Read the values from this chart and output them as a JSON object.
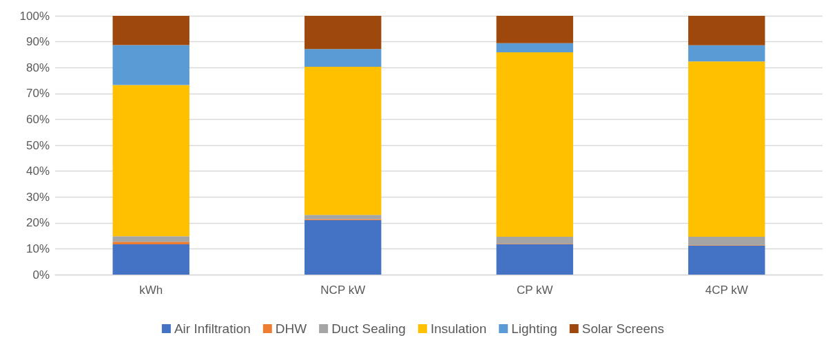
{
  "chart_data": {
    "type": "bar",
    "stacked": true,
    "categories": [
      "kWh",
      "NCP kW",
      "CP kW",
      "4CP kW"
    ],
    "series": [
      {
        "name": "Air Infiltration",
        "color": "#4472c4",
        "values": [
          11.7,
          21.0,
          11.7,
          11.2
        ]
      },
      {
        "name": "DHW",
        "color": "#ed7d31",
        "values": [
          1.0,
          0.4,
          0.2,
          0.2
        ]
      },
      {
        "name": "Duct Sealing",
        "color": "#a5a5a5",
        "values": [
          2.1,
          1.7,
          2.7,
          3.2
        ]
      },
      {
        "name": "Insulation",
        "color": "#ffc000",
        "values": [
          58.5,
          57.2,
          71.3,
          67.8
        ]
      },
      {
        "name": "Lighting",
        "color": "#5b9bd5",
        "values": [
          15.4,
          6.9,
          3.5,
          6.2
        ]
      },
      {
        "name": "Solar Screens",
        "color": "#9e480e",
        "values": [
          11.3,
          12.8,
          10.6,
          11.4
        ]
      }
    ],
    "ylim": [
      0,
      100
    ],
    "yticks": [
      {
        "value": 0,
        "label": "0%"
      },
      {
        "value": 10,
        "label": "10%"
      },
      {
        "value": 20,
        "label": "20%"
      },
      {
        "value": 30,
        "label": "30%"
      },
      {
        "value": 40,
        "label": "40%"
      },
      {
        "value": 50,
        "label": "50%"
      },
      {
        "value": 60,
        "label": "60%"
      },
      {
        "value": 70,
        "label": "70%"
      },
      {
        "value": 80,
        "label": "80%"
      },
      {
        "value": 90,
        "label": "90%"
      },
      {
        "value": 100,
        "label": "100%"
      }
    ],
    "grid": "y",
    "legend": "bottom"
  }
}
